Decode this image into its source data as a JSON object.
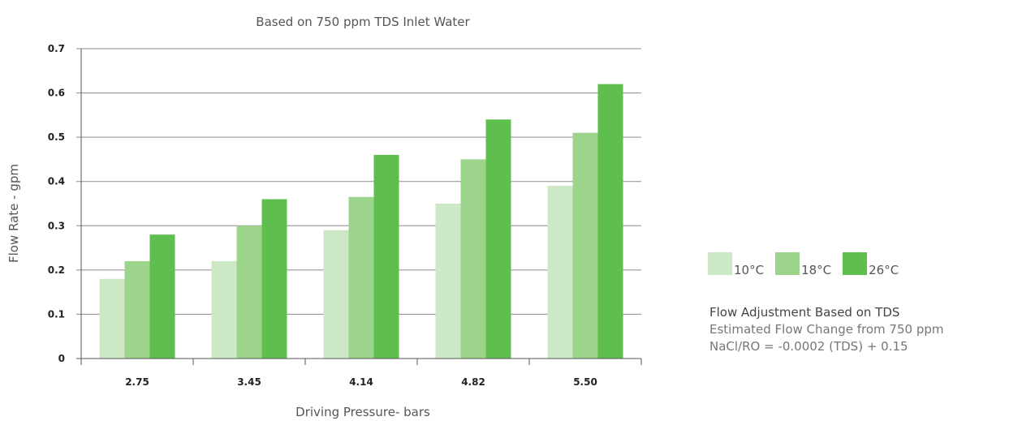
{
  "chart_data": {
    "type": "bar",
    "title": "Based on 750 ppm TDS Inlet Water",
    "xlabel": "Driving Pressure- bars",
    "ylabel": "Flow Rate - gpm",
    "categories": [
      "2.75",
      "3.45",
      "4.14",
      "4.82",
      "5.50"
    ],
    "yticks": [
      "0",
      "0.1",
      "0.2",
      "0.3",
      "0.4",
      "0.5",
      "0.6",
      "0.7"
    ],
    "ylim": [
      0,
      0.7
    ],
    "grid": true,
    "legend_position": "right",
    "series": [
      {
        "name": "10°C",
        "color": "#cde8c4",
        "values": [
          0.18,
          0.22,
          0.29,
          0.35,
          0.39
        ]
      },
      {
        "name": "18°C",
        "color": "#9dd48c",
        "values": [
          0.22,
          0.3,
          0.365,
          0.45,
          0.51
        ]
      },
      {
        "name": "26°C",
        "color": "#5fbf4e",
        "values": [
          0.28,
          0.36,
          0.46,
          0.54,
          0.62
        ]
      }
    ]
  },
  "note": {
    "title": "Flow Adjustment Based on TDS",
    "line1": "Estimated Flow Change from 750 ppm",
    "line2": "NaCl/RO = -0.0002 (TDS) + 0.15"
  }
}
